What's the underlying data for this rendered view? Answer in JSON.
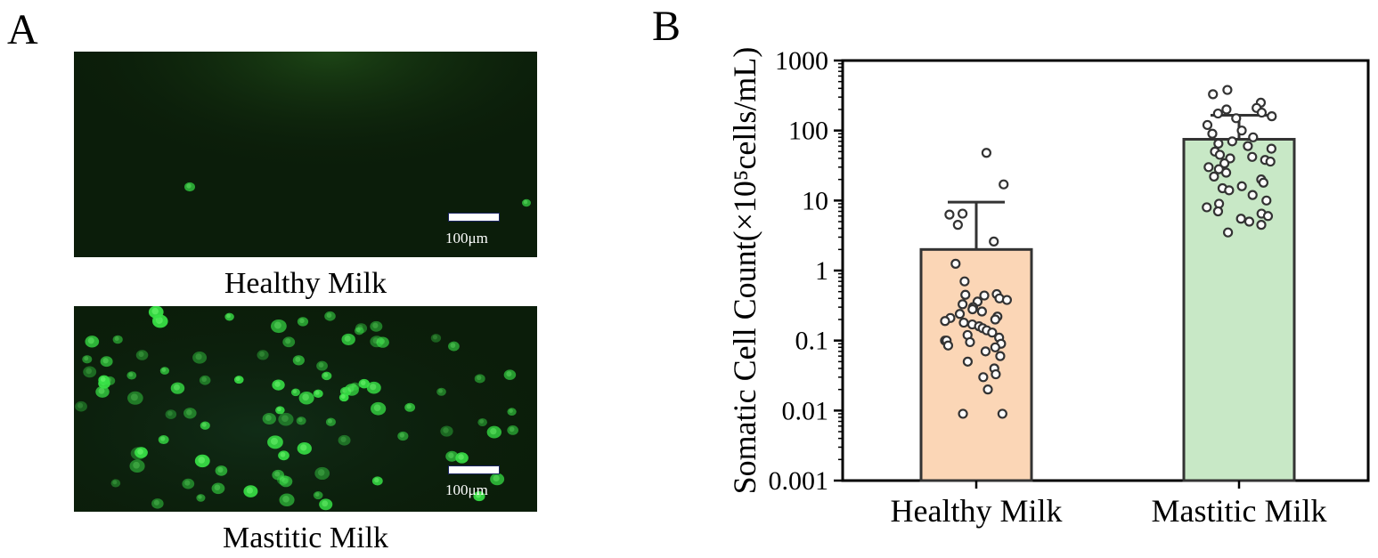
{
  "panel_a": {
    "letter": "A",
    "images": [
      {
        "caption": "Healthy Milk",
        "scale_label": "100μm"
      },
      {
        "caption": "Mastitic Milk",
        "scale_label": "100μm"
      }
    ],
    "colors": {
      "background": "#0b1d0a",
      "cell": "#38e046"
    }
  },
  "panel_b": {
    "letter": "B"
  },
  "chart_data": {
    "type": "bar",
    "categories": [
      "Healthy Milk",
      "Mastitic Milk"
    ],
    "values": [
      2.0,
      75
    ],
    "error_upper": [
      9.5,
      165
    ],
    "bar_colors": [
      "#fbd6b6",
      "#c8e8c6"
    ],
    "ylabel": "Somatic Cell Count(×10⁵cells/mL)",
    "yscale": "log",
    "ylim": [
      0.001,
      1000
    ],
    "yticks": [
      {
        "value": 0.001,
        "label": "0.001"
      },
      {
        "value": 0.01,
        "label": "0.01"
      },
      {
        "value": 0.1,
        "label": "0.1"
      },
      {
        "value": 1,
        "label": "1"
      },
      {
        "value": 10,
        "label": "10"
      },
      {
        "value": 100,
        "label": "100"
      },
      {
        "value": 1000,
        "label": "1000"
      }
    ],
    "grid": false,
    "points": [
      [
        48,
        17,
        6.5,
        6.3,
        4.5,
        2.6,
        1.25,
        0.7,
        0.46,
        0.45,
        0.44,
        0.4,
        0.38,
        0.36,
        0.33,
        0.3,
        0.28,
        0.26,
        0.24,
        0.22,
        0.21,
        0.2,
        0.19,
        0.18,
        0.17,
        0.16,
        0.15,
        0.14,
        0.13,
        0.12,
        0.11,
        0.1,
        0.1,
        0.095,
        0.09,
        0.085,
        0.08,
        0.07,
        0.06,
        0.05,
        0.04,
        0.033,
        0.03,
        0.02,
        0.009,
        0.009
      ],
      [
        380,
        330,
        250,
        210,
        200,
        180,
        175,
        160,
        150,
        120,
        100,
        90,
        80,
        70,
        65,
        60,
        55,
        50,
        45,
        42,
        40,
        38,
        36,
        34,
        30,
        28,
        25,
        22,
        20,
        18,
        16,
        15,
        14,
        12,
        10,
        9,
        8,
        7,
        6.5,
        6,
        5.5,
        5,
        4.5,
        3.5
      ]
    ]
  }
}
